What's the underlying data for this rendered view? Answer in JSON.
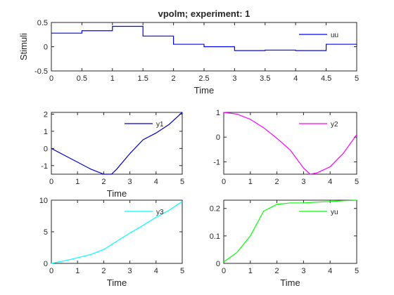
{
  "colors": {
    "uu": "#0000ff",
    "y1": "#0000cc",
    "y2": "#ff00ff",
    "y3": "#00ffff",
    "yu": "#00ff00",
    "axis": "#262626"
  },
  "chart_data": [
    {
      "id": "stimuli",
      "type": "line",
      "step": true,
      "title": "vpolm; experiment: 1",
      "xlabel": "Time",
      "ylabel": "Stimuli",
      "xlim": [
        0,
        5
      ],
      "ylim": [
        -0.5,
        0.5
      ],
      "xticks": [
        "0",
        "0.5",
        "1",
        "1.5",
        "2",
        "2.5",
        "3",
        "3.5",
        "4",
        "4.5",
        "5"
      ],
      "yticks": [
        "-0.5",
        "0",
        "0.5"
      ],
      "legend": "top-right",
      "series": [
        {
          "name": "uu",
          "color_key": "uu",
          "x": [
            0,
            0.5,
            1,
            1.5,
            2,
            2.5,
            3,
            3.5,
            4,
            4.5,
            5
          ],
          "y": [
            0.28,
            0.33,
            0.42,
            0.22,
            0.05,
            0.0,
            -0.08,
            -0.07,
            -0.08,
            0.05,
            0.03
          ]
        }
      ]
    },
    {
      "id": "y1",
      "type": "line",
      "title": "",
      "xlabel": "Time",
      "ylabel": "",
      "xlim": [
        0,
        5
      ],
      "ylim": [
        -1.5,
        2.1
      ],
      "xticks": [
        "0",
        "1",
        "2",
        "3",
        "4",
        "5"
      ],
      "yticks": [
        "-1",
        "0",
        "1",
        "2"
      ],
      "legend": "top-right",
      "series": [
        {
          "name": "y1",
          "color_key": "y1",
          "x": [
            0,
            0.5,
            1,
            1.5,
            2,
            2.3,
            2.5,
            3,
            3.5,
            4,
            4.5,
            5
          ],
          "y": [
            0,
            -0.4,
            -0.8,
            -1.2,
            -1.5,
            -1.5,
            -1.2,
            -0.3,
            0.5,
            0.9,
            1.4,
            2.1
          ]
        }
      ]
    },
    {
      "id": "y2",
      "type": "line",
      "title": "",
      "xlabel": "",
      "ylabel": "",
      "xlim": [
        0,
        5
      ],
      "ylim": [
        -1.5,
        1
      ],
      "xticks": [
        "0",
        "1",
        "2",
        "3",
        "4",
        "5"
      ],
      "yticks": [
        "-1",
        "0",
        "1"
      ],
      "legend": "top-right",
      "series": [
        {
          "name": "y2",
          "color_key": "y2",
          "x": [
            0,
            0.5,
            1,
            1.5,
            2,
            2.5,
            3,
            3.25,
            3.5,
            4,
            4.5,
            5
          ],
          "y": [
            1.0,
            0.93,
            0.72,
            0.38,
            -0.05,
            -0.52,
            -1.25,
            -1.5,
            -1.45,
            -1.2,
            -0.65,
            0.1
          ]
        }
      ]
    },
    {
      "id": "y3",
      "type": "line",
      "title": "",
      "xlabel": "Time",
      "ylabel": "",
      "xlim": [
        0,
        5
      ],
      "ylim": [
        0,
        10
      ],
      "xticks": [
        "0",
        "1",
        "2",
        "3",
        "4",
        "5"
      ],
      "yticks": [
        "0",
        "5",
        "10"
      ],
      "legend": "top-right",
      "series": [
        {
          "name": "y3",
          "color_key": "y3",
          "x": [
            0,
            0.5,
            1,
            1.5,
            2,
            2.5,
            3,
            3.5,
            4,
            4.5,
            5
          ],
          "y": [
            0,
            0.4,
            0.9,
            1.4,
            2.2,
            3.5,
            4.8,
            6.0,
            7.3,
            8.4,
            9.8
          ]
        }
      ]
    },
    {
      "id": "yu",
      "type": "line",
      "title": "",
      "xlabel": "Time",
      "ylabel": "",
      "xlim": [
        0,
        5
      ],
      "ylim": [
        0,
        0.23
      ],
      "xticks": [
        "0",
        "1",
        "2",
        "3",
        "4",
        "5"
      ],
      "yticks": [
        "0",
        "0.1",
        "0.2"
      ],
      "legend": "top-right",
      "series": [
        {
          "name": "yu",
          "color_key": "yu",
          "x": [
            0,
            0.5,
            1,
            1.5,
            2,
            2.5,
            3,
            3.5,
            4,
            4.5,
            5
          ],
          "y": [
            0.005,
            0.04,
            0.1,
            0.19,
            0.215,
            0.22,
            0.22,
            0.223,
            0.225,
            0.228,
            0.23
          ]
        }
      ]
    }
  ]
}
